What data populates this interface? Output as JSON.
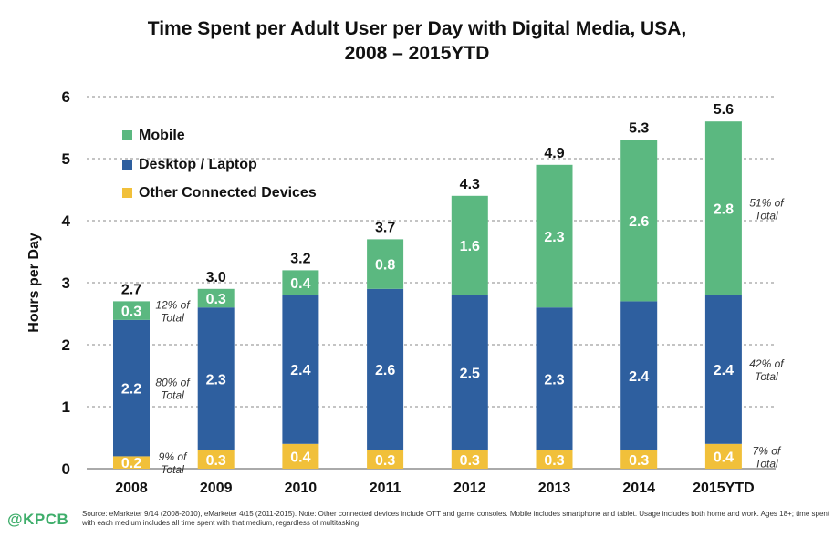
{
  "title_line1": "Time Spent per Adult User per Day with Digital Media, USA,",
  "title_line2": "2008 – 2015YTD",
  "logo": "@KPCB",
  "source": "Source: eMarketer 9/14 (2008-2010), eMarketer 4/15 (2011-2015). Note: Other connected devices include OTT and game consoles. Mobile includes smartphone and tablet. Usage includes both home and work. Ages 18+; time spent with each medium includes all time spent with that medium, regardless of multitasking.",
  "colors": {
    "mobile": "#5bb880",
    "desktop": "#2e5f9f",
    "other": "#f1c03a"
  },
  "chart_data": {
    "type": "bar",
    "stacked": true,
    "ylabel": "Hours per Day",
    "ylim": [
      0,
      6
    ],
    "yticks": [
      "0",
      "1",
      "2",
      "3",
      "4",
      "5",
      "6"
    ],
    "categories": [
      "2008",
      "2009",
      "2010",
      "2011",
      "2012",
      "2013",
      "2014",
      "2015YTD"
    ],
    "series": [
      {
        "name": "Other Connected Devices",
        "values": [
          0.2,
          0.3,
          0.4,
          0.3,
          0.3,
          0.3,
          0.3,
          0.4
        ],
        "labels": [
          "0.2",
          "0.3",
          "0.4",
          "0.3",
          "0.3",
          "0.3",
          "0.3",
          "0.4"
        ]
      },
      {
        "name": "Desktop / Laptop",
        "values": [
          2.2,
          2.3,
          2.4,
          2.6,
          2.5,
          2.3,
          2.4,
          2.4
        ],
        "labels": [
          "2.2",
          "2.3",
          "2.4",
          "2.6",
          "2.5",
          "2.3",
          "2.4",
          "2.4"
        ]
      },
      {
        "name": "Mobile",
        "values": [
          0.3,
          0.3,
          0.4,
          0.8,
          1.6,
          2.3,
          2.6,
          2.8
        ],
        "labels": [
          "0.3",
          "0.3",
          "0.4",
          "0.8",
          "1.6",
          "2.3",
          "2.6",
          "2.8"
        ]
      }
    ],
    "totals": [
      "2.7",
      "3.0",
      "3.2",
      "3.7",
      "4.3",
      "4.9",
      "5.3",
      "5.6"
    ],
    "legend": [
      "Mobile",
      "Desktop / Laptop",
      "Other Connected Devices"
    ],
    "legend_position": "top-left",
    "grid": "dotted horizontal",
    "annotations": [
      {
        "category": "2008",
        "series": "Mobile",
        "lines": [
          "12% of",
          "Total"
        ]
      },
      {
        "category": "2008",
        "series": "Desktop / Laptop",
        "lines": [
          "80% of",
          "Total"
        ]
      },
      {
        "category": "2008",
        "series": "Other Connected Devices",
        "lines": [
          "9% of",
          "Total"
        ]
      },
      {
        "category": "2015YTD",
        "series": "Mobile",
        "lines": [
          "51% of",
          "Total"
        ]
      },
      {
        "category": "2015YTD",
        "series": "Desktop / Laptop",
        "lines": [
          "42% of",
          "Total"
        ]
      },
      {
        "category": "2015YTD",
        "series": "Other Connected Devices",
        "lines": [
          "7% of",
          "Total"
        ]
      }
    ]
  }
}
